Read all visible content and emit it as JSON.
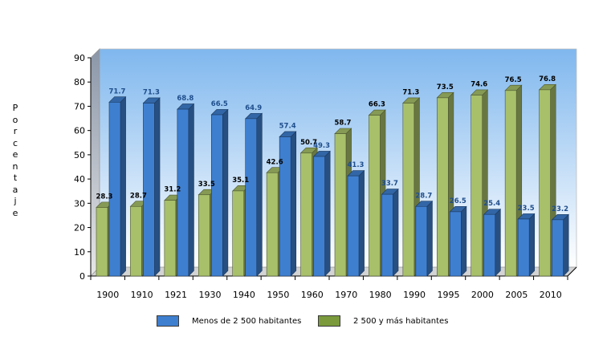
{
  "chart_data": {
    "type": "bar",
    "title": "",
    "xlabel": "",
    "ylabel": "Porcentaje",
    "ylim": [
      0,
      90
    ],
    "yticks": [
      0,
      10,
      20,
      30,
      40,
      50,
      60,
      70,
      80,
      90
    ],
    "grid": false,
    "legend_position": "bottom",
    "categories": [
      "1900",
      "1910",
      "1921",
      "1930",
      "1940",
      "1950",
      "1960",
      "1970",
      "1980",
      "1990",
      "1995",
      "2000",
      "2005",
      "2010"
    ],
    "series": [
      {
        "name": "2 500 y más habitantes",
        "color": "#a8c06a",
        "values": [
          28.3,
          28.7,
          31.2,
          33.5,
          35.1,
          42.6,
          50.7,
          58.7,
          66.3,
          71.3,
          73.5,
          74.6,
          76.5,
          76.8
        ]
      },
      {
        "name": "Menos de 2 500 habitantes",
        "color": "#3f7fd0",
        "values": [
          71.7,
          71.3,
          68.8,
          66.5,
          64.9,
          57.4,
          49.3,
          41.3,
          33.7,
          28.7,
          26.5,
          25.4,
          23.5,
          23.2
        ]
      }
    ]
  },
  "legend": {
    "rural_label": "Menos de 2 500 habitantes",
    "urban_label": "2 500 y más habitantes",
    "rural_color": "#3f7fd0",
    "urban_color": "#7a9a3c"
  }
}
